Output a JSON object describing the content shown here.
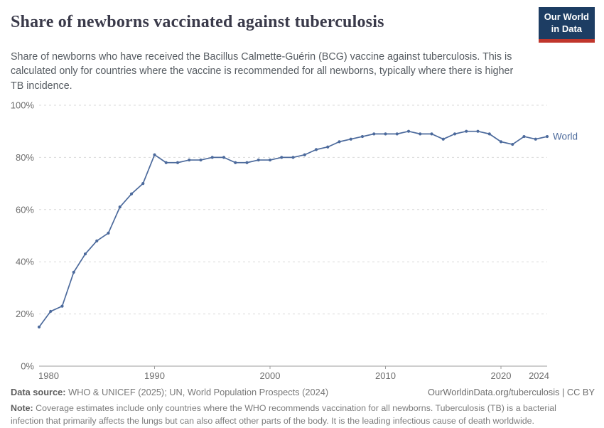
{
  "header": {
    "title": "Share of newborns vaccinated against tuberculosis",
    "logo": {
      "line1": "Our World",
      "line2": "in Data"
    }
  },
  "subtitle": "Share of newborns who have received the Bacillus Calmette-Guérin (BCG) vaccine against tuberculosis. This is calculated only for countries where the vaccine is recommended for all newborns, typically where there is higher TB incidence.",
  "colors": {
    "line": "#4C6A9C",
    "logo_navy": "#1d3d63",
    "logo_red": "#c0362c",
    "grid": "#d9d9d9",
    "axis": "#9e9e9e",
    "tick_text": "#6e6e6e"
  },
  "chart_data": {
    "type": "line",
    "title": "Share of newborns vaccinated against tuberculosis",
    "xlabel": "",
    "ylabel": "",
    "grid": "horizontal-dashed",
    "legend": "line-end-label",
    "xlim": [
      1980,
      2024
    ],
    "ylim": [
      0,
      100
    ],
    "x": [
      1980,
      1981,
      1982,
      1983,
      1984,
      1985,
      1986,
      1987,
      1988,
      1989,
      1990,
      1991,
      1992,
      1993,
      1994,
      1995,
      1996,
      1997,
      1998,
      1999,
      2000,
      2001,
      2002,
      2003,
      2004,
      2005,
      2006,
      2007,
      2008,
      2009,
      2010,
      2011,
      2012,
      2013,
      2014,
      2015,
      2016,
      2017,
      2018,
      2019,
      2020,
      2021,
      2022,
      2023,
      2024
    ],
    "series": [
      {
        "name": "World",
        "color": "#4C6A9C",
        "values": [
          15,
          21,
          23,
          36,
          43,
          48,
          51,
          61,
          66,
          70,
          81,
          78,
          78,
          79,
          79,
          80,
          80,
          78,
          78,
          79,
          79,
          80,
          80,
          81,
          83,
          84,
          86,
          87,
          88,
          89,
          89,
          89,
          90,
          89,
          89,
          87,
          89,
          90,
          90,
          89,
          86,
          85,
          88,
          87,
          88
        ]
      }
    ],
    "yticks": [
      {
        "value": 0,
        "label": "0%"
      },
      {
        "value": 20,
        "label": "20%"
      },
      {
        "value": 40,
        "label": "40%"
      },
      {
        "value": 60,
        "label": "60%"
      },
      {
        "value": 80,
        "label": "80%"
      },
      {
        "value": 100,
        "label": "100%"
      }
    ],
    "xticks": [
      {
        "value": 1980,
        "label": "1980",
        "anchor": "start",
        "tick": false
      },
      {
        "value": 1990,
        "label": "1990",
        "anchor": "middle",
        "tick": true
      },
      {
        "value": 2000,
        "label": "2000",
        "anchor": "middle",
        "tick": true
      },
      {
        "value": 2010,
        "label": "2010",
        "anchor": "middle",
        "tick": true
      },
      {
        "value": 2020,
        "label": "2020",
        "anchor": "middle",
        "tick": true
      },
      {
        "value": 2024,
        "label": "2024",
        "anchor": "end",
        "tick": false
      }
    ]
  },
  "footer": {
    "datasource_label": "Data source:",
    "datasource": "WHO & UNICEF (2025); UN, World Population Prospects (2024)",
    "link": "OurWorldinData.org/tuberculosis | CC BY",
    "note_label": "Note:",
    "note": "Coverage estimates include only countries where the WHO recommends vaccination for all newborns. Tuberculosis (TB) is a bacterial infection that primarily affects the lungs but can also affect other parts of the body. It is the leading infectious cause of death worldwide."
  }
}
